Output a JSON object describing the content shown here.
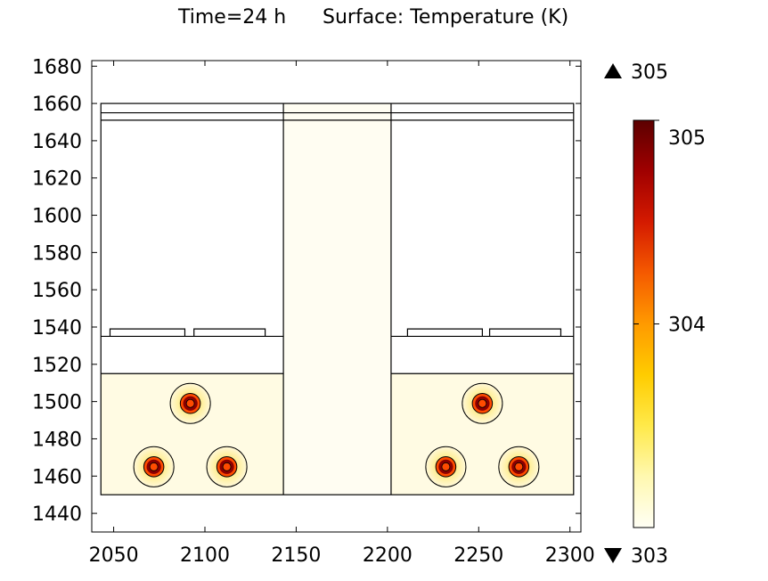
{
  "chart_data": {
    "type": "heatmap",
    "title": "Time=24 h",
    "subtitle": "Surface: Temperature (K)",
    "xlabel": "",
    "ylabel": "",
    "xlim": [
      2038,
      2306
    ],
    "ylim": [
      1430,
      1683
    ],
    "x_ticks": [
      "2050",
      "2100",
      "2150",
      "2200",
      "2250",
      "2300"
    ],
    "y_ticks": [
      "1440",
      "1460",
      "1480",
      "1500",
      "1520",
      "1540",
      "1560",
      "1580",
      "1600",
      "1620",
      "1640",
      "1660",
      "1680"
    ],
    "grid": false,
    "colorbar": {
      "range": [
        303,
        305
      ],
      "max_marker_label": "305",
      "min_marker_label": "303",
      "tick_labels": [
        "305",
        "304"
      ],
      "colormap": [
        "#fffff5",
        "#fff8b0",
        "#ffe94a",
        "#ffcc00",
        "#ff9a00",
        "#f55a00",
        "#d41a00",
        "#a00000",
        "#5c0000"
      ]
    },
    "geometry_lines": {
      "outer_box": {
        "x": [
          2043,
          2302
        ],
        "y": [
          1450,
          1660
        ]
      },
      "horizontal_lines_y": [
        1655,
        1651
      ],
      "channel_x": [
        2143,
        2202
      ],
      "raised_floor_y": 1515,
      "shelf_y": 1535,
      "tray_tops_y": 1539,
      "trays_x": [
        [
          2048,
          2089
        ],
        [
          2094,
          2133
        ],
        [
          2211,
          2252
        ],
        [
          2256,
          2295
        ]
      ]
    },
    "heat_sources": [
      {
        "x": 2092,
        "y": 1499,
        "outer_radius_x": 11
      },
      {
        "x": 2072,
        "y": 1465,
        "outer_radius_x": 11
      },
      {
        "x": 2112,
        "y": 1465,
        "outer_radius_x": 11
      },
      {
        "x": 2252,
        "y": 1499,
        "outer_radius_x": 11
      },
      {
        "x": 2232,
        "y": 1465,
        "outer_radius_x": 11
      },
      {
        "x": 2272,
        "y": 1465,
        "outer_radius_x": 11
      }
    ],
    "field_colors": {
      "upper_air": "#ffffff",
      "floor_region": "#fffbe3",
      "channel": "#fffdf2",
      "source_halo": "#fff4b0",
      "source_ring": "#ff4b00",
      "source_core": "#8b0000"
    }
  }
}
